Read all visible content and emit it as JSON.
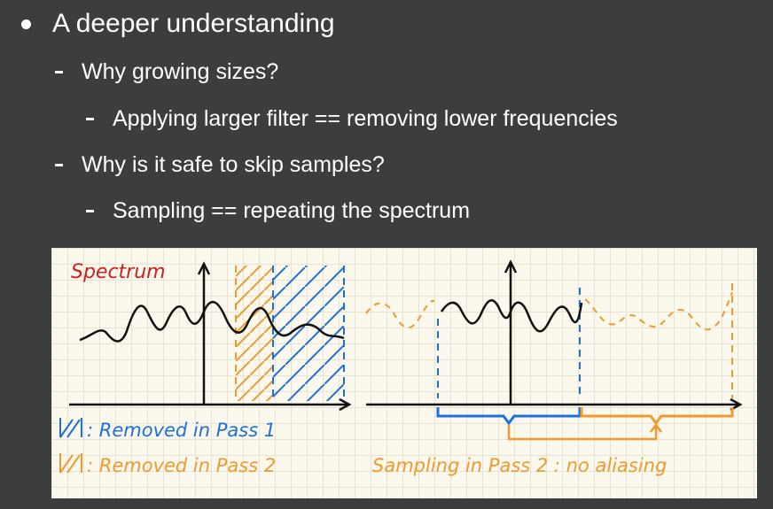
{
  "slide": {
    "bullet": "A deeper understanding",
    "sub1": "Why growing sizes?",
    "sub1_detail": "Applying larger filter == removing lower frequencies",
    "sub2": "Why is it safe to skip samples?",
    "sub2_detail": "Sampling == repeating the spectrum"
  },
  "figure": {
    "title": "Spectrum",
    "legend_pass1": ": Removed in Pass 1",
    "legend_pass2": ": Removed in Pass 2",
    "note": "Sampling in Pass 2 : no aliasing",
    "colors": {
      "title": "#cc1f1f",
      "ink": "#111111",
      "pass1": "#1e6fd9",
      "pass2": "#ef9a2e",
      "background": "#fbf8ee"
    }
  }
}
